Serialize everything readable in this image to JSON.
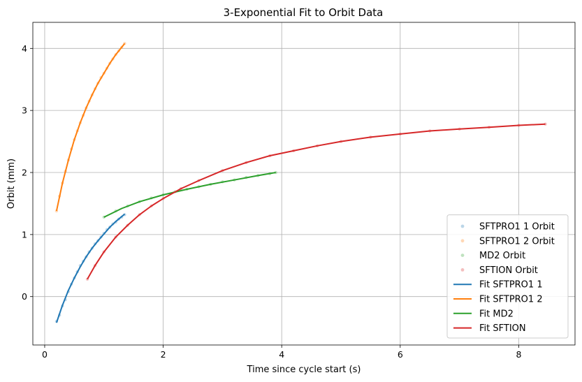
{
  "chart_data": {
    "type": "scatter",
    "title": "3-Exponential Fit to Orbit Data",
    "xlabel": "Time since cycle start (s)",
    "ylabel": "Orbit (mm)",
    "xlim": [
      -0.2,
      8.95
    ],
    "ylim": [
      -0.78,
      4.42
    ],
    "xticks": [
      0,
      2,
      4,
      6,
      8
    ],
    "yticks": [
      0,
      1,
      2,
      3,
      4
    ],
    "grid": true,
    "legend_position": "lower-right",
    "series": [
      {
        "name": "SFTPRO1 1 Orbit",
        "kind": "scatter",
        "color": "#1f77b4",
        "x": [
          0.2,
          0.25,
          0.3,
          0.35,
          0.4,
          0.45,
          0.5,
          0.55,
          0.6,
          0.65,
          0.7,
          0.75,
          0.8,
          0.85,
          0.9,
          0.95,
          1.0,
          1.05,
          1.1,
          1.15,
          1.2,
          1.25,
          1.3,
          1.35
        ],
        "y": [
          -0.4,
          -0.3,
          -0.15,
          -0.05,
          0.08,
          0.2,
          0.3,
          0.4,
          0.5,
          0.57,
          0.64,
          0.72,
          0.78,
          0.85,
          0.9,
          0.96,
          1.02,
          1.08,
          1.12,
          1.17,
          1.2,
          1.25,
          1.28,
          1.32
        ]
      },
      {
        "name": "SFTPRO1 2 Orbit",
        "kind": "scatter",
        "color": "#ff7f0e",
        "x": [
          0.2,
          0.25,
          0.3,
          0.35,
          0.4,
          0.45,
          0.5,
          0.55,
          0.6,
          0.65,
          0.7,
          0.75,
          0.8,
          0.85,
          0.9,
          0.95,
          1.0,
          1.05,
          1.1,
          1.15,
          1.2,
          1.25,
          1.3,
          1.35
        ],
        "y": [
          1.38,
          1.62,
          1.83,
          2.02,
          2.2,
          2.38,
          2.53,
          2.67,
          2.8,
          2.92,
          3.04,
          3.15,
          3.25,
          3.35,
          3.44,
          3.53,
          3.6,
          3.68,
          3.76,
          3.83,
          3.9,
          3.96,
          4.02,
          4.08
        ]
      },
      {
        "name": "MD2 Orbit",
        "kind": "scatter",
        "color": "#2ca02c",
        "x": [
          1.0,
          1.2,
          1.4,
          1.6,
          1.8,
          2.0,
          2.2,
          2.4,
          2.6,
          2.8,
          3.0,
          3.2,
          3.4,
          3.6,
          3.8,
          3.9
        ],
        "y": [
          1.28,
          1.38,
          1.46,
          1.53,
          1.59,
          1.64,
          1.69,
          1.73,
          1.77,
          1.81,
          1.85,
          1.88,
          1.92,
          1.95,
          1.98,
          2.0
        ]
      },
      {
        "name": "SFTION Orbit",
        "kind": "scatter",
        "color": "#d62728",
        "x": [
          0.72,
          0.85,
          1.0,
          1.2,
          1.4,
          1.6,
          1.8,
          2.0,
          2.3,
          2.6,
          3.0,
          3.4,
          3.8,
          4.2,
          4.6,
          5.0,
          5.5,
          6.0,
          6.5,
          7.0,
          7.5,
          8.0,
          8.45
        ],
        "y": [
          0.28,
          0.5,
          0.72,
          0.96,
          1.15,
          1.32,
          1.46,
          1.58,
          1.74,
          1.87,
          2.03,
          2.16,
          2.27,
          2.35,
          2.43,
          2.5,
          2.57,
          2.62,
          2.67,
          2.7,
          2.73,
          2.76,
          2.78
        ]
      },
      {
        "name": "Fit SFTPRO1 1",
        "kind": "line",
        "color": "#1f77b4",
        "x": [
          0.2,
          0.3,
          0.4,
          0.5,
          0.6,
          0.7,
          0.8,
          0.9,
          1.0,
          1.1,
          1.2,
          1.35
        ],
        "y": [
          -0.42,
          -0.14,
          0.1,
          0.3,
          0.48,
          0.64,
          0.78,
          0.9,
          1.01,
          1.12,
          1.21,
          1.33
        ]
      },
      {
        "name": "Fit SFTPRO1 2",
        "kind": "line",
        "color": "#ff7f0e",
        "x": [
          0.2,
          0.3,
          0.4,
          0.5,
          0.6,
          0.7,
          0.8,
          0.9,
          1.0,
          1.1,
          1.2,
          1.35
        ],
        "y": [
          1.38,
          1.83,
          2.2,
          2.53,
          2.8,
          3.04,
          3.25,
          3.44,
          3.6,
          3.76,
          3.9,
          4.08
        ]
      },
      {
        "name": "Fit MD2",
        "kind": "line",
        "color": "#2ca02c",
        "x": [
          1.0,
          1.3,
          1.6,
          2.0,
          2.4,
          2.8,
          3.2,
          3.6,
          3.9
        ],
        "y": [
          1.28,
          1.42,
          1.53,
          1.64,
          1.73,
          1.81,
          1.88,
          1.95,
          2.0
        ]
      },
      {
        "name": "Fit SFTION",
        "kind": "line",
        "color": "#d62728",
        "x": [
          0.72,
          0.85,
          1.0,
          1.2,
          1.4,
          1.6,
          1.8,
          2.0,
          2.3,
          2.6,
          3.0,
          3.4,
          3.8,
          4.2,
          4.6,
          5.0,
          5.5,
          6.0,
          6.5,
          7.0,
          7.5,
          8.0,
          8.45
        ],
        "y": [
          0.28,
          0.5,
          0.72,
          0.96,
          1.15,
          1.32,
          1.46,
          1.58,
          1.74,
          1.87,
          2.03,
          2.16,
          2.27,
          2.35,
          2.43,
          2.5,
          2.57,
          2.62,
          2.67,
          2.7,
          2.73,
          2.76,
          2.78
        ]
      }
    ]
  }
}
